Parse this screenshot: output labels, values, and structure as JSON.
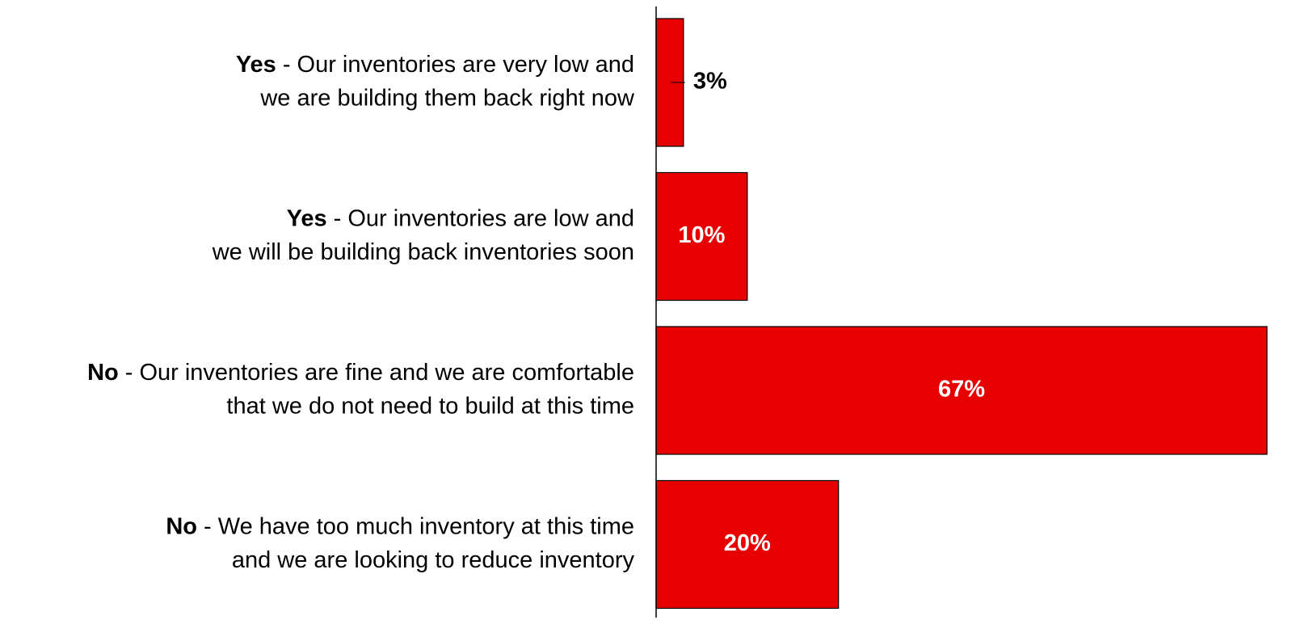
{
  "chart_data": {
    "type": "bar",
    "orientation": "horizontal",
    "categories": [
      [
        "Yes",
        "- Our inventories are very low and",
        "we are building them back right now"
      ],
      [
        "Yes",
        "- Our inventories are low and",
        "we will be building back inventories soon"
      ],
      [
        "No",
        "- Our inventories are fine and we are comfortable",
        "that we do not need to build at this time"
      ],
      [
        "No",
        "- We have too much inventory at this time",
        "and we are looking to reduce inventory"
      ]
    ],
    "values": [
      3,
      10,
      67,
      20
    ],
    "value_labels": [
      "3%",
      "10%",
      "67%",
      "20%"
    ],
    "color": "#e60000"
  }
}
